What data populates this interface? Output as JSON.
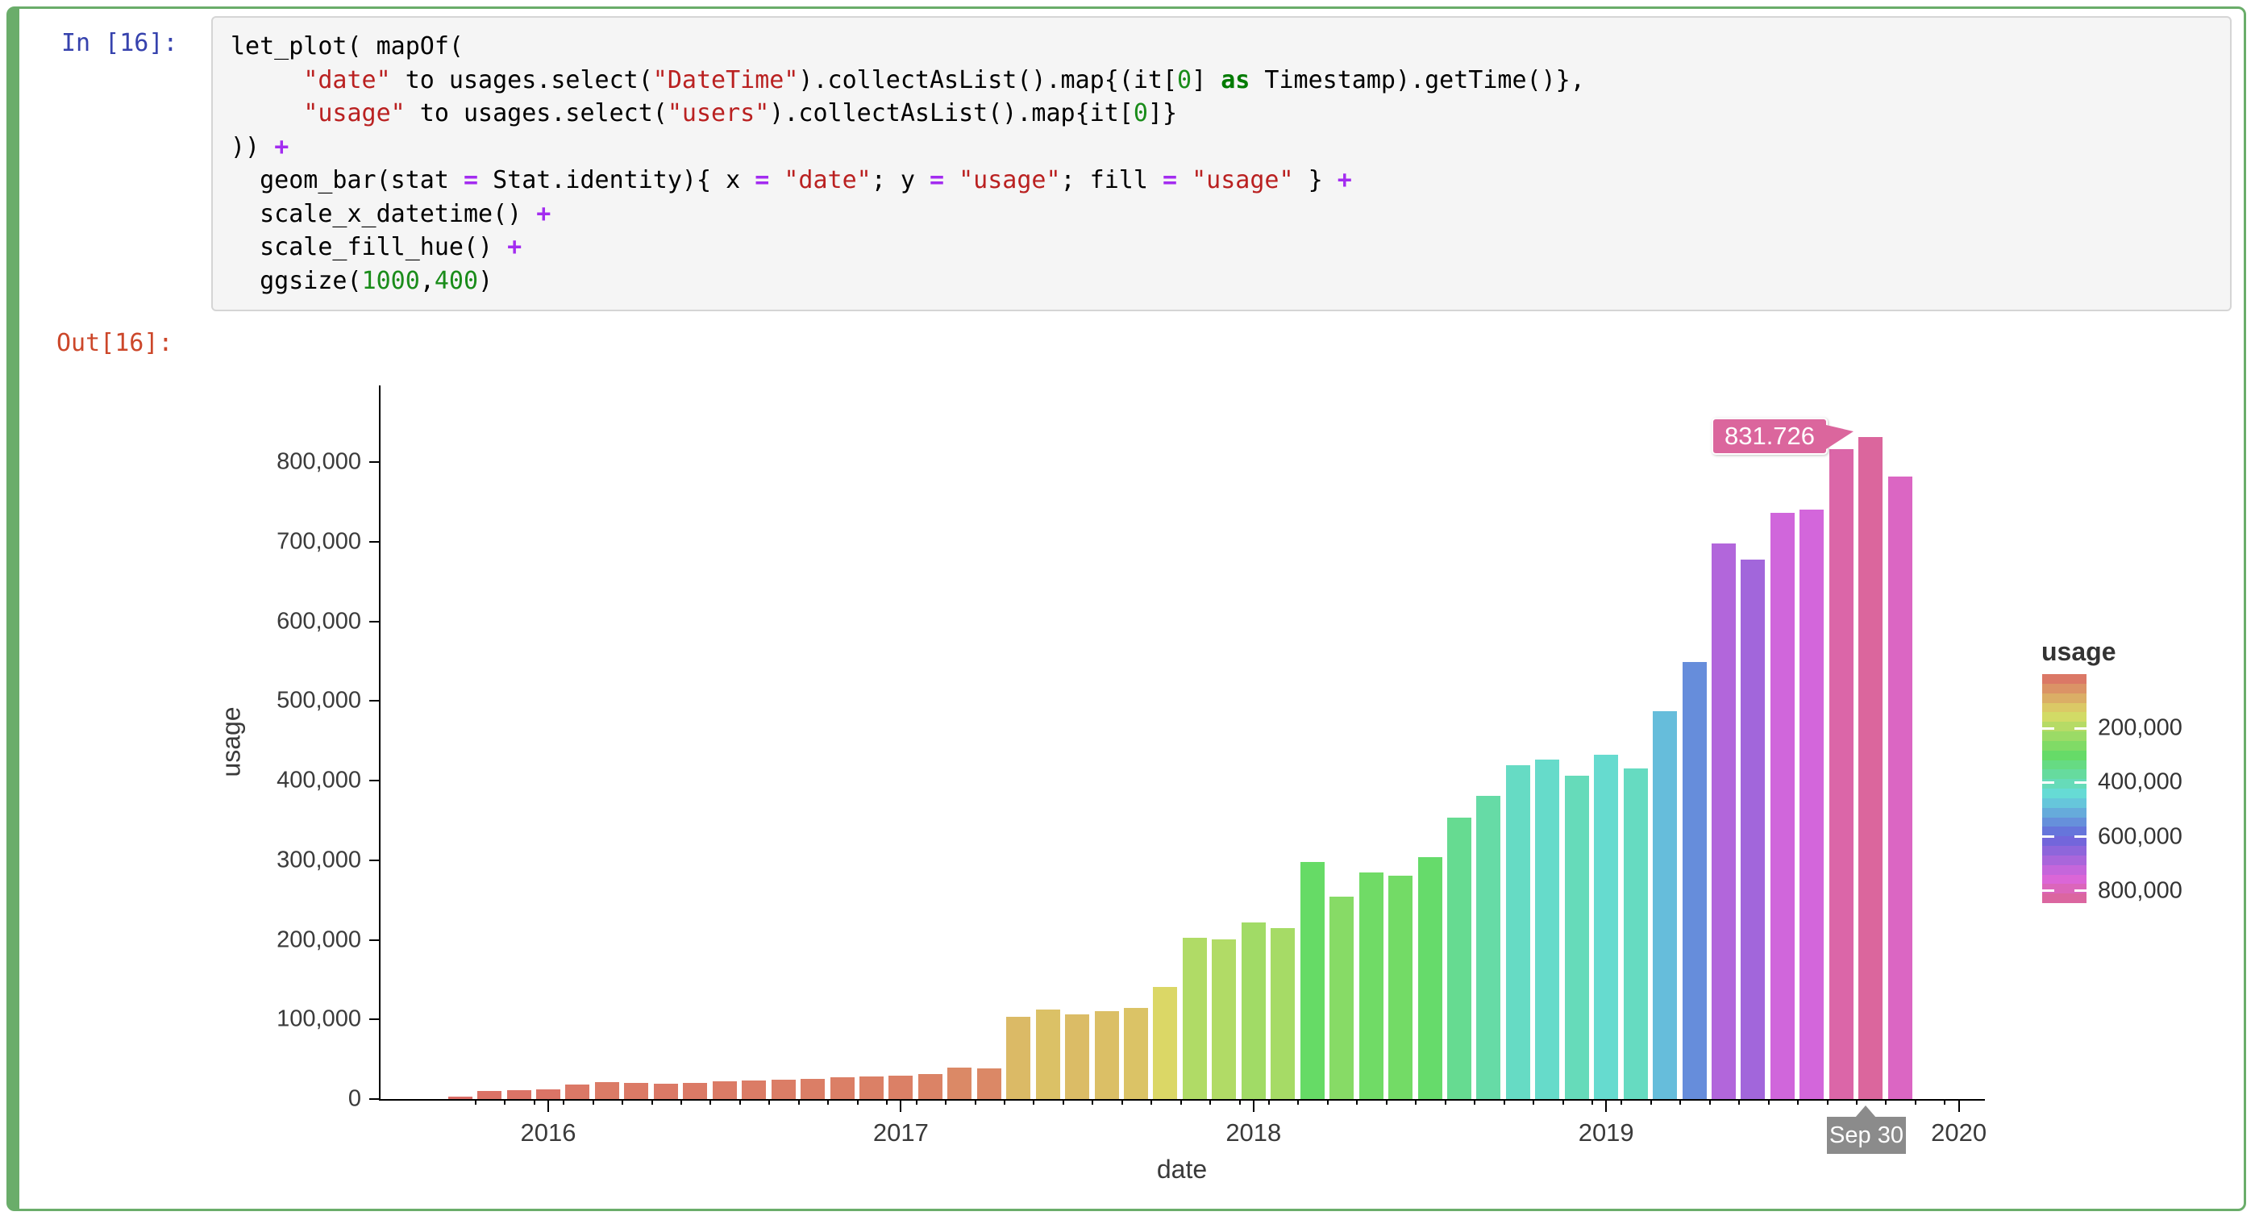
{
  "page": {
    "background": "#ffffff",
    "frame_color": "#6aad6a"
  },
  "cell": {
    "input_prompt": "In [16]:",
    "output_prompt": "Out[16]:",
    "code": {
      "lines": [
        [
          [
            "p",
            "let_plot( mapOf("
          ]
        ],
        [
          [
            "p",
            "     "
          ],
          [
            "s",
            "\"date\""
          ],
          [
            "p",
            " to usages.select("
          ],
          [
            "s",
            "\"DateTime\""
          ],
          [
            "p",
            ").collectAsList().map{(it["
          ],
          [
            "n",
            "0"
          ],
          [
            "p",
            "] "
          ],
          [
            "k",
            "as"
          ],
          [
            "p",
            " Timestamp).getTime()},"
          ]
        ],
        [
          [
            "p",
            "     "
          ],
          [
            "s",
            "\"usage\""
          ],
          [
            "p",
            " to usages.select("
          ],
          [
            "s",
            "\"users\""
          ],
          [
            "p",
            ").collectAsList().map{it["
          ],
          [
            "n",
            "0"
          ],
          [
            "p",
            "]}"
          ]
        ],
        [
          [
            "p",
            ")) "
          ],
          [
            "o",
            "+"
          ]
        ],
        [
          [
            "p",
            "  geom_bar(stat "
          ],
          [
            "o",
            "="
          ],
          [
            "p",
            " Stat.identity){ x "
          ],
          [
            "o",
            "="
          ],
          [
            "p",
            " "
          ],
          [
            "s",
            "\"date\""
          ],
          [
            "p",
            "; y "
          ],
          [
            "o",
            "="
          ],
          [
            "p",
            " "
          ],
          [
            "s",
            "\"usage\""
          ],
          [
            "p",
            "; fill "
          ],
          [
            "o",
            "="
          ],
          [
            "p",
            " "
          ],
          [
            "s",
            "\"usage\""
          ],
          [
            "p",
            " } "
          ],
          [
            "o",
            "+"
          ]
        ],
        [
          [
            "p",
            "  scale_x_datetime() "
          ],
          [
            "o",
            "+"
          ]
        ],
        [
          [
            "p",
            "  scale_fill_hue() "
          ],
          [
            "o",
            "+"
          ]
        ],
        [
          [
            "p",
            "  ggsize("
          ],
          [
            "n",
            "1000"
          ],
          [
            "p",
            ","
          ],
          [
            "n",
            "400"
          ],
          [
            "p",
            ")"
          ]
        ]
      ]
    }
  },
  "chart_data": {
    "type": "bar",
    "title": "",
    "xlabel": "date",
    "ylabel": "usage",
    "grid": false,
    "legend_position": "right",
    "x_tick_labels": [
      "2016",
      "2017",
      "2018",
      "2019",
      "2020"
    ],
    "y_tick_labels": [
      "0",
      "100,000",
      "200,000",
      "300,000",
      "400,000",
      "500,000",
      "600,000",
      "700,000",
      "800,000"
    ],
    "ylim": [
      0,
      870000
    ],
    "series": [
      {
        "name": "usage",
        "dates": [
          "2015-09-30",
          "2015-10-31",
          "2015-11-30",
          "2015-12-31",
          "2016-01-31",
          "2016-02-29",
          "2016-03-31",
          "2016-04-30",
          "2016-05-31",
          "2016-06-30",
          "2016-07-31",
          "2016-08-31",
          "2016-09-30",
          "2016-10-31",
          "2016-11-30",
          "2016-12-31",
          "2017-01-31",
          "2017-02-28",
          "2017-03-31",
          "2017-04-30",
          "2017-05-31",
          "2017-06-30",
          "2017-07-31",
          "2017-08-31",
          "2017-09-30",
          "2017-10-31",
          "2017-11-30",
          "2017-12-31",
          "2018-01-31",
          "2018-02-28",
          "2018-03-31",
          "2018-04-30",
          "2018-05-31",
          "2018-06-30",
          "2018-07-31",
          "2018-08-31",
          "2018-09-30",
          "2018-10-31",
          "2018-11-30",
          "2018-12-31",
          "2019-01-31",
          "2019-02-28",
          "2019-03-31",
          "2019-04-30",
          "2019-05-31",
          "2019-06-30",
          "2019-07-31",
          "2019-08-31",
          "2019-09-30",
          "2019-10-31"
        ],
        "values": [
          3000,
          10100,
          11500,
          12500,
          18200,
          21500,
          20200,
          19600,
          20500,
          22500,
          23500,
          24500,
          25800,
          27300,
          28400,
          29000,
          31700,
          39500,
          38500,
          103300,
          112700,
          106000,
          110000,
          114400,
          140500,
          202400,
          200400,
          221600,
          214700,
          297600,
          254500,
          284900,
          280500,
          303500,
          353000,
          380400,
          418900,
          426600,
          406400,
          432400,
          414800,
          487400,
          549200,
          697400,
          677200,
          736200,
          740000,
          816600,
          831726,
          782000
        ]
      }
    ],
    "legend": {
      "title": "usage",
      "tick_values": [
        200000,
        400000,
        600000,
        800000
      ],
      "tick_labels": [
        "200,000",
        "400,000",
        "600,000",
        "800,000"
      ],
      "domain": [
        0,
        845000
      ]
    },
    "tooltips": {
      "value_label": "831.726",
      "axis_date_label": "Sep 30",
      "highlight_index": 48
    },
    "color_mapping": {
      "type": "hue",
      "hue_offset": 2,
      "hue_span": 330,
      "value_max": 831726,
      "saturation": 62,
      "lightness": 63
    },
    "colors": {
      "axis": "#000000",
      "text": "#3a3a3a",
      "axis_tooltip_bg": "#8b8b8b",
      "tooltip_text": "#ffffff"
    }
  }
}
